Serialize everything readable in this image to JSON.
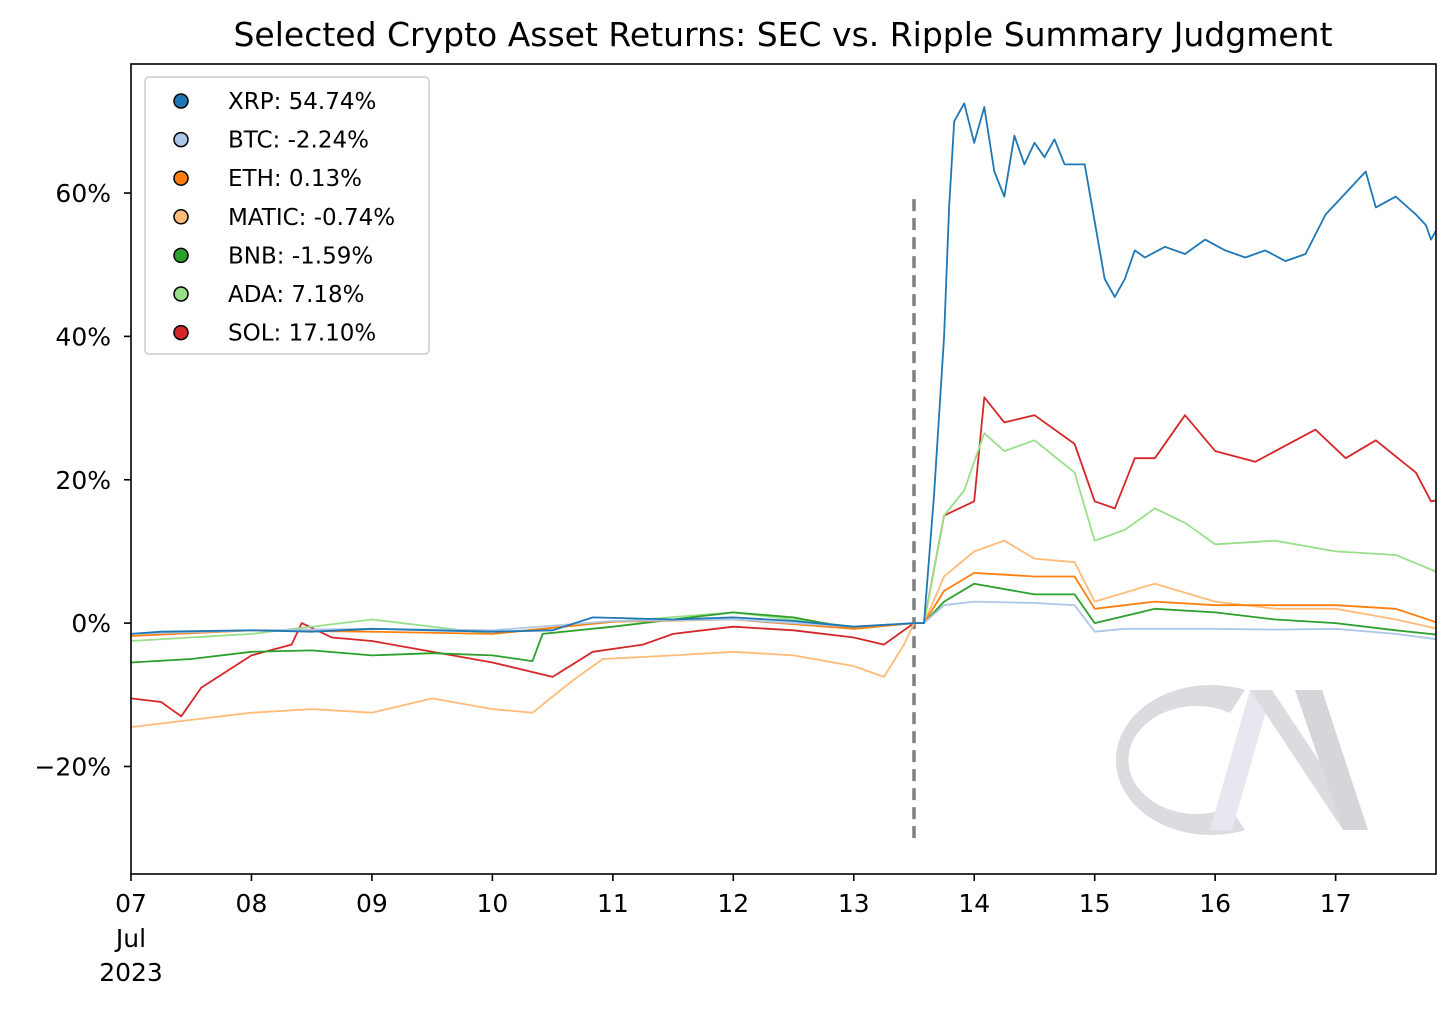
{
  "chart_data": {
    "type": "line",
    "title": "Selected Crypto Asset Returns: SEC vs. Ripple Summary Judgment",
    "xlabel": "",
    "ylabel": "",
    "x_range": [
      "2023-07-07 00:00",
      "2023-07-17 20:00"
    ],
    "ylim": [
      -35,
      78
    ],
    "y_ticks": [
      {
        "value": -20,
        "label": "−20%"
      },
      {
        "value": 0,
        "label": "0%"
      },
      {
        "value": 20,
        "label": "20%"
      },
      {
        "value": 40,
        "label": "40%"
      },
      {
        "value": 60,
        "label": "60%"
      }
    ],
    "x_ticks": [
      {
        "x": "2023-07-07",
        "label": "07",
        "sublabel_1": "Jul",
        "sublabel_2": "2023"
      },
      {
        "x": "2023-07-08",
        "label": "08"
      },
      {
        "x": "2023-07-09",
        "label": "09"
      },
      {
        "x": "2023-07-10",
        "label": "10"
      },
      {
        "x": "2023-07-11",
        "label": "11"
      },
      {
        "x": "2023-07-12",
        "label": "12"
      },
      {
        "x": "2023-07-13",
        "label": "13"
      },
      {
        "x": "2023-07-14",
        "label": "14"
      },
      {
        "x": "2023-07-15",
        "label": "15"
      },
      {
        "x": "2023-07-16",
        "label": "16"
      },
      {
        "x": "2023-07-17",
        "label": "17"
      }
    ],
    "event_line": {
      "x": "2023-07-13 12:00",
      "y_from": -30,
      "y_to": 60,
      "color": "#808080"
    },
    "legend_position": "top-left",
    "grid": false,
    "watermark_text": "CM",
    "series": [
      {
        "name": "XRP: 54.74%",
        "color": "#1f77b4",
        "points": [
          [
            "2023-07-07 00:00",
            -1.5
          ],
          [
            "2023-07-07 06:00",
            -1.2
          ],
          [
            "2023-07-08 00:00",
            -1.0
          ],
          [
            "2023-07-08 12:00",
            -1.2
          ],
          [
            "2023-07-09 00:00",
            -0.8
          ],
          [
            "2023-07-09 12:00",
            -1.0
          ],
          [
            "2023-07-10 00:00",
            -1.2
          ],
          [
            "2023-07-10 12:00",
            -1.0
          ],
          [
            "2023-07-10 20:00",
            0.8
          ],
          [
            "2023-07-11 12:00",
            0.5
          ],
          [
            "2023-07-12 00:00",
            0.8
          ],
          [
            "2023-07-12 12:00",
            0.3
          ],
          [
            "2023-07-13 00:00",
            -0.5
          ],
          [
            "2023-07-13 12:00",
            0.0
          ],
          [
            "2023-07-13 14:00",
            0.0
          ],
          [
            "2023-07-13 16:00",
            18
          ],
          [
            "2023-07-13 18:00",
            40
          ],
          [
            "2023-07-13 19:00",
            58
          ],
          [
            "2023-07-13 20:00",
            70
          ],
          [
            "2023-07-13 22:00",
            72.5
          ],
          [
            "2023-07-14 00:00",
            67
          ],
          [
            "2023-07-14 02:00",
            72
          ],
          [
            "2023-07-14 04:00",
            63
          ],
          [
            "2023-07-14 06:00",
            59.5
          ],
          [
            "2023-07-14 08:00",
            68
          ],
          [
            "2023-07-14 10:00",
            64
          ],
          [
            "2023-07-14 12:00",
            67
          ],
          [
            "2023-07-14 14:00",
            65
          ],
          [
            "2023-07-14 16:00",
            67.5
          ],
          [
            "2023-07-14 18:00",
            64
          ],
          [
            "2023-07-14 22:00",
            64
          ],
          [
            "2023-07-15 00:00",
            56
          ],
          [
            "2023-07-15 02:00",
            48
          ],
          [
            "2023-07-15 04:00",
            45.5
          ],
          [
            "2023-07-15 06:00",
            48
          ],
          [
            "2023-07-15 08:00",
            52
          ],
          [
            "2023-07-15 10:00",
            51
          ],
          [
            "2023-07-15 14:00",
            52.5
          ],
          [
            "2023-07-15 18:00",
            51.5
          ],
          [
            "2023-07-15 22:00",
            53.5
          ],
          [
            "2023-07-16 02:00",
            52
          ],
          [
            "2023-07-16 06:00",
            51
          ],
          [
            "2023-07-16 10:00",
            52
          ],
          [
            "2023-07-16 14:00",
            50.5
          ],
          [
            "2023-07-16 18:00",
            51.5
          ],
          [
            "2023-07-16 22:00",
            57
          ],
          [
            "2023-07-17 02:00",
            60
          ],
          [
            "2023-07-17 06:00",
            63
          ],
          [
            "2023-07-17 08:00",
            58
          ],
          [
            "2023-07-17 12:00",
            59.5
          ],
          [
            "2023-07-17 16:00",
            57
          ],
          [
            "2023-07-17 18:00",
            55.5
          ],
          [
            "2023-07-17 19:00",
            53.5
          ],
          [
            "2023-07-17 20:00",
            54.74
          ]
        ]
      },
      {
        "name": "BTC: -2.24%",
        "color": "#aec7e8",
        "points": [
          [
            "2023-07-07 00:00",
            -1.5
          ],
          [
            "2023-07-08 00:00",
            -1.0
          ],
          [
            "2023-07-09 00:00",
            -0.8
          ],
          [
            "2023-07-10 00:00",
            -1.0
          ],
          [
            "2023-07-11 00:00",
            0.3
          ],
          [
            "2023-07-12 00:00",
            0.5
          ],
          [
            "2023-07-13 00:00",
            -0.5
          ],
          [
            "2023-07-13 12:00",
            0.0
          ],
          [
            "2023-07-13 14:00",
            0.0
          ],
          [
            "2023-07-13 18:00",
            2.5
          ],
          [
            "2023-07-14 00:00",
            3.0
          ],
          [
            "2023-07-14 12:00",
            2.8
          ],
          [
            "2023-07-14 20:00",
            2.5
          ],
          [
            "2023-07-15 00:00",
            -1.2
          ],
          [
            "2023-07-15 06:00",
            -0.8
          ],
          [
            "2023-07-16 00:00",
            -0.8
          ],
          [
            "2023-07-16 12:00",
            -0.9
          ],
          [
            "2023-07-17 00:00",
            -0.8
          ],
          [
            "2023-07-17 12:00",
            -1.5
          ],
          [
            "2023-07-17 20:00",
            -2.24
          ]
        ]
      },
      {
        "name": "ETH: 0.13%",
        "color": "#ff7f0e",
        "points": [
          [
            "2023-07-07 00:00",
            -1.8
          ],
          [
            "2023-07-08 00:00",
            -1.0
          ],
          [
            "2023-07-09 00:00",
            -1.2
          ],
          [
            "2023-07-10 00:00",
            -1.5
          ],
          [
            "2023-07-11 00:00",
            0.2
          ],
          [
            "2023-07-12 00:00",
            0.5
          ],
          [
            "2023-07-13 00:00",
            -0.8
          ],
          [
            "2023-07-13 12:00",
            0.0
          ],
          [
            "2023-07-13 14:00",
            0.0
          ],
          [
            "2023-07-13 18:00",
            4.5
          ],
          [
            "2023-07-14 00:00",
            7.0
          ],
          [
            "2023-07-14 12:00",
            6.5
          ],
          [
            "2023-07-14 20:00",
            6.5
          ],
          [
            "2023-07-15 00:00",
            2.0
          ],
          [
            "2023-07-15 12:00",
            3.0
          ],
          [
            "2023-07-16 00:00",
            2.5
          ],
          [
            "2023-07-16 12:00",
            2.5
          ],
          [
            "2023-07-17 00:00",
            2.5
          ],
          [
            "2023-07-17 12:00",
            2.0
          ],
          [
            "2023-07-17 20:00",
            0.13
          ]
        ]
      },
      {
        "name": "MATIC: -0.74%",
        "color": "#ffbb78",
        "points": [
          [
            "2023-07-07 00:00",
            -14.5
          ],
          [
            "2023-07-07 12:00",
            -13.5
          ],
          [
            "2023-07-08 00:00",
            -12.5
          ],
          [
            "2023-07-08 12:00",
            -12.0
          ],
          [
            "2023-07-09 00:00",
            -12.5
          ],
          [
            "2023-07-09 12:00",
            -10.5
          ],
          [
            "2023-07-10 00:00",
            -12.0
          ],
          [
            "2023-07-10 08:00",
            -12.5
          ],
          [
            "2023-07-10 16:00",
            -8.0
          ],
          [
            "2023-07-10 22:00",
            -5.0
          ],
          [
            "2023-07-11 12:00",
            -4.5
          ],
          [
            "2023-07-12 00:00",
            -4.0
          ],
          [
            "2023-07-12 12:00",
            -4.5
          ],
          [
            "2023-07-13 00:00",
            -6.0
          ],
          [
            "2023-07-13 06:00",
            -7.5
          ],
          [
            "2023-07-13 10:00",
            -3.0
          ],
          [
            "2023-07-13 12:00",
            0.0
          ],
          [
            "2023-07-13 14:00",
            0.0
          ],
          [
            "2023-07-13 18:00",
            6.5
          ],
          [
            "2023-07-14 00:00",
            10.0
          ],
          [
            "2023-07-14 06:00",
            11.5
          ],
          [
            "2023-07-14 12:00",
            9.0
          ],
          [
            "2023-07-14 20:00",
            8.5
          ],
          [
            "2023-07-15 00:00",
            3.0
          ],
          [
            "2023-07-15 12:00",
            5.5
          ],
          [
            "2023-07-16 00:00",
            3.0
          ],
          [
            "2023-07-16 12:00",
            2.0
          ],
          [
            "2023-07-17 00:00",
            2.0
          ],
          [
            "2023-07-17 12:00",
            0.5
          ],
          [
            "2023-07-17 20:00",
            -0.74
          ]
        ]
      },
      {
        "name": "BNB: -1.59%",
        "color": "#2ca02c",
        "points": [
          [
            "2023-07-07 00:00",
            -5.5
          ],
          [
            "2023-07-07 12:00",
            -5.0
          ],
          [
            "2023-07-08 00:00",
            -4.0
          ],
          [
            "2023-07-08 12:00",
            -3.8
          ],
          [
            "2023-07-09 00:00",
            -4.5
          ],
          [
            "2023-07-09 12:00",
            -4.2
          ],
          [
            "2023-07-10 00:00",
            -4.5
          ],
          [
            "2023-07-10 08:00",
            -5.3
          ],
          [
            "2023-07-10 10:00",
            -1.5
          ],
          [
            "2023-07-11 00:00",
            -0.5
          ],
          [
            "2023-07-11 12:00",
            0.5
          ],
          [
            "2023-07-12 00:00",
            1.5
          ],
          [
            "2023-07-12 12:00",
            0.8
          ],
          [
            "2023-07-13 00:00",
            -0.8
          ],
          [
            "2023-07-13 12:00",
            0.0
          ],
          [
            "2023-07-13 14:00",
            0.0
          ],
          [
            "2023-07-13 18:00",
            3.0
          ],
          [
            "2023-07-14 00:00",
            5.5
          ],
          [
            "2023-07-14 12:00",
            4.0
          ],
          [
            "2023-07-14 20:00",
            4.0
          ],
          [
            "2023-07-15 00:00",
            0.0
          ],
          [
            "2023-07-15 12:00",
            2.0
          ],
          [
            "2023-07-16 00:00",
            1.5
          ],
          [
            "2023-07-16 12:00",
            0.5
          ],
          [
            "2023-07-17 00:00",
            0.0
          ],
          [
            "2023-07-17 12:00",
            -1.0
          ],
          [
            "2023-07-17 20:00",
            -1.59
          ]
        ]
      },
      {
        "name": "ADA: 7.18%",
        "color": "#98df8a",
        "points": [
          [
            "2023-07-07 00:00",
            -2.5
          ],
          [
            "2023-07-08 00:00",
            -1.5
          ],
          [
            "2023-07-09 00:00",
            0.5
          ],
          [
            "2023-07-10 00:00",
            -1.5
          ],
          [
            "2023-07-11 00:00",
            0.2
          ],
          [
            "2023-07-12 00:00",
            1.5
          ],
          [
            "2023-07-13 00:00",
            -0.5
          ],
          [
            "2023-07-13 12:00",
            0.0
          ],
          [
            "2023-07-13 14:00",
            0.0
          ],
          [
            "2023-07-13 18:00",
            15.0
          ],
          [
            "2023-07-13 22:00",
            18.5
          ],
          [
            "2023-07-14 02:00",
            26.5
          ],
          [
            "2023-07-14 06:00",
            24.0
          ],
          [
            "2023-07-14 12:00",
            25.5
          ],
          [
            "2023-07-14 20:00",
            21.0
          ],
          [
            "2023-07-15 00:00",
            11.5
          ],
          [
            "2023-07-15 06:00",
            13.0
          ],
          [
            "2023-07-15 12:00",
            16.0
          ],
          [
            "2023-07-15 18:00",
            14.0
          ],
          [
            "2023-07-16 00:00",
            11.0
          ],
          [
            "2023-07-16 12:00",
            11.5
          ],
          [
            "2023-07-17 00:00",
            10.0
          ],
          [
            "2023-07-17 12:00",
            9.5
          ],
          [
            "2023-07-17 20:00",
            7.18
          ]
        ]
      },
      {
        "name": "SOL: 17.10%",
        "color": "#d62728",
        "points": [
          [
            "2023-07-07 00:00",
            -10.5
          ],
          [
            "2023-07-07 06:00",
            -11.0
          ],
          [
            "2023-07-07 10:00",
            -13.0
          ],
          [
            "2023-07-07 14:00",
            -9.0
          ],
          [
            "2023-07-08 00:00",
            -4.5
          ],
          [
            "2023-07-08 08:00",
            -3.0
          ],
          [
            "2023-07-08 10:00",
            0.0
          ],
          [
            "2023-07-08 16:00",
            -2.0
          ],
          [
            "2023-07-09 00:00",
            -2.5
          ],
          [
            "2023-07-09 12:00",
            -4.0
          ],
          [
            "2023-07-10 00:00",
            -5.5
          ],
          [
            "2023-07-10 12:00",
            -7.5
          ],
          [
            "2023-07-10 20:00",
            -4.0
          ],
          [
            "2023-07-11 06:00",
            -3.0
          ],
          [
            "2023-07-11 12:00",
            -1.5
          ],
          [
            "2023-07-12 00:00",
            -0.5
          ],
          [
            "2023-07-12 12:00",
            -1.0
          ],
          [
            "2023-07-13 00:00",
            -2.0
          ],
          [
            "2023-07-13 06:00",
            -3.0
          ],
          [
            "2023-07-13 12:00",
            0.0
          ],
          [
            "2023-07-13 14:00",
            0.0
          ],
          [
            "2023-07-13 18:00",
            15.0
          ],
          [
            "2023-07-14 00:00",
            17.0
          ],
          [
            "2023-07-14 02:00",
            31.5
          ],
          [
            "2023-07-14 06:00",
            28.0
          ],
          [
            "2023-07-14 12:00",
            29.0
          ],
          [
            "2023-07-14 20:00",
            25.0
          ],
          [
            "2023-07-15 00:00",
            17.0
          ],
          [
            "2023-07-15 04:00",
            16.0
          ],
          [
            "2023-07-15 08:00",
            23.0
          ],
          [
            "2023-07-15 12:00",
            23.0
          ],
          [
            "2023-07-15 18:00",
            29.0
          ],
          [
            "2023-07-16 00:00",
            24.0
          ],
          [
            "2023-07-16 08:00",
            22.5
          ],
          [
            "2023-07-16 20:00",
            27.0
          ],
          [
            "2023-07-17 02:00",
            23.0
          ],
          [
            "2023-07-17 08:00",
            25.5
          ],
          [
            "2023-07-17 16:00",
            21.0
          ],
          [
            "2023-07-17 19:00",
            17.0
          ],
          [
            "2023-07-17 20:00",
            17.1
          ]
        ]
      }
    ]
  }
}
